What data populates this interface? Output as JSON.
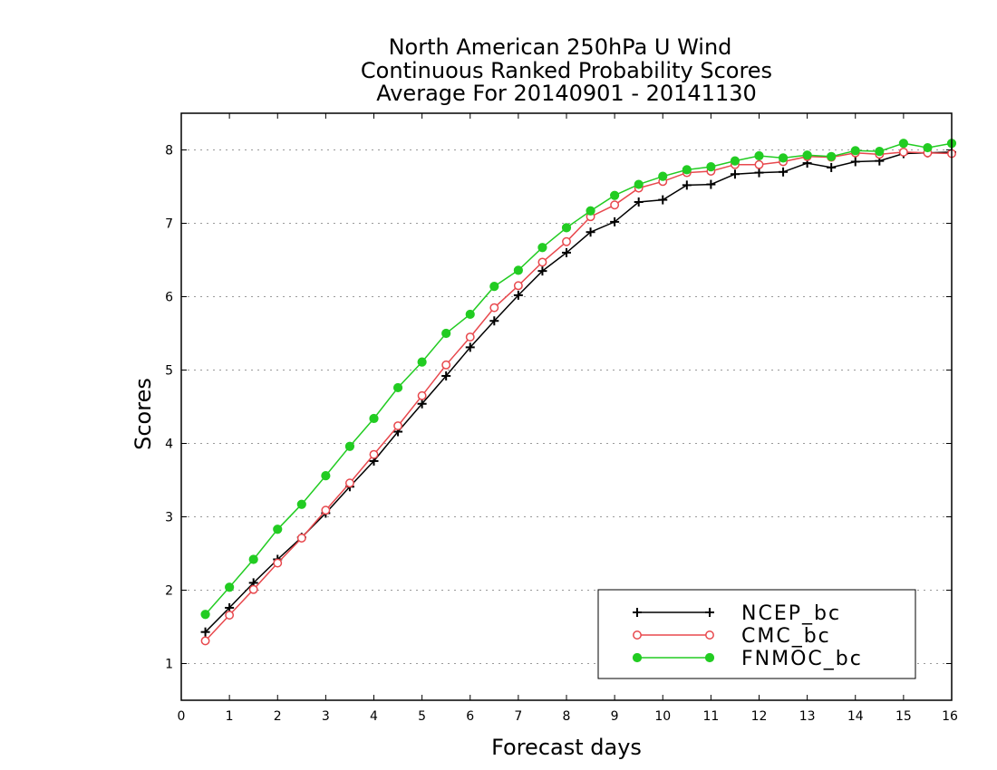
{
  "chart_data": {
    "type": "line",
    "title": [
      "North American 250hPa U Wind",
      "Continuous Ranked Probability Scores",
      "Average For 20140901 - 20141130"
    ],
    "xlabel": "Forecast days",
    "ylabel": "Scores",
    "xlim": [
      0,
      16
    ],
    "ylim": [
      0.5,
      8.5
    ],
    "xticks": [
      "0",
      "1",
      "2",
      "3",
      "4",
      "5",
      "6",
      "7",
      "8",
      "9",
      "10",
      "11",
      "12",
      "13",
      "14",
      "15",
      "16"
    ],
    "yticks": [
      "1",
      "2",
      "3",
      "4",
      "5",
      "6",
      "7",
      "8"
    ],
    "grid": "horizontal dotted",
    "legend_position": "bottom-right",
    "x": [
      0.5,
      1,
      1.5,
      2,
      2.5,
      3,
      3.5,
      4,
      4.5,
      5,
      5.5,
      6,
      6.5,
      7,
      7.5,
      8,
      8.5,
      9,
      9.5,
      10,
      10.5,
      11,
      11.5,
      12,
      12.5,
      13,
      13.5,
      14,
      14.5,
      15,
      15.5,
      16
    ],
    "series": [
      {
        "name": "NCEP_bc",
        "color": "#000000",
        "marker": "plus",
        "values": [
          1.43,
          1.76,
          2.1,
          2.42,
          2.72,
          3.05,
          3.41,
          3.76,
          4.16,
          4.54,
          4.92,
          5.31,
          5.67,
          6.02,
          6.35,
          6.6,
          6.88,
          7.02,
          7.29,
          7.32,
          7.52,
          7.53,
          7.67,
          7.69,
          7.7,
          7.82,
          7.76,
          7.84,
          7.85,
          7.95,
          7.96,
          7.97
        ]
      },
      {
        "name": "CMC_bc",
        "color": "#e8484d",
        "marker": "open-circle",
        "values": [
          1.31,
          1.66,
          2.01,
          2.37,
          2.71,
          3.09,
          3.46,
          3.85,
          4.24,
          4.65,
          5.07,
          5.45,
          5.85,
          6.15,
          6.47,
          6.75,
          7.09,
          7.25,
          7.48,
          7.57,
          7.69,
          7.71,
          7.8,
          7.8,
          7.84,
          7.91,
          7.9,
          7.96,
          7.94,
          7.97,
          7.96,
          7.95
        ]
      },
      {
        "name": "FNMOC_bc",
        "color": "#22cc22",
        "marker": "filled-circle",
        "values": [
          1.67,
          2.04,
          2.42,
          2.83,
          3.17,
          3.56,
          3.96,
          4.34,
          4.76,
          5.11,
          5.5,
          5.76,
          6.14,
          6.36,
          6.67,
          6.94,
          7.17,
          7.38,
          7.53,
          7.64,
          7.73,
          7.77,
          7.85,
          7.92,
          7.89,
          7.93,
          7.91,
          7.99,
          7.98,
          8.09,
          8.03,
          8.09
        ]
      }
    ]
  }
}
